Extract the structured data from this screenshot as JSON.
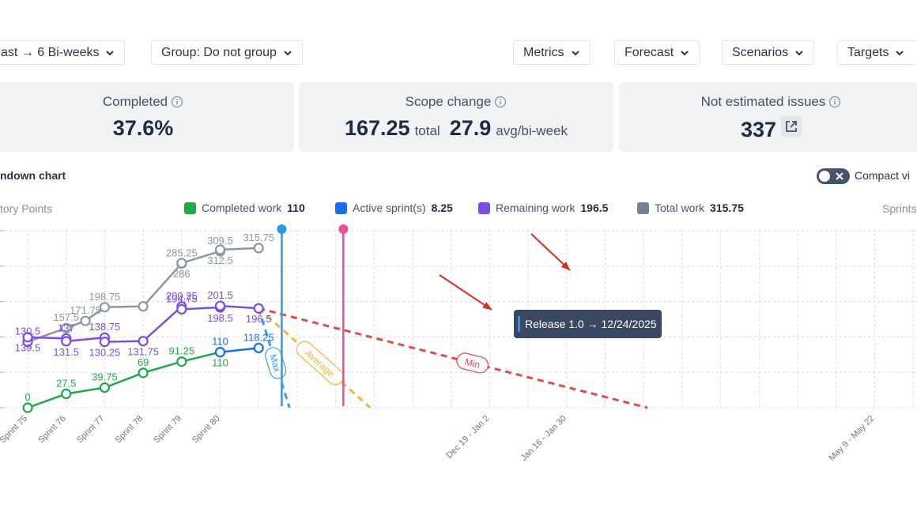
{
  "toolbar": {
    "range_label": "ast → 6 Bi-weeks",
    "group_label": "Group: Do not group",
    "metrics_label": "Metrics",
    "forecast_label": "Forecast",
    "scenarios_label": "Scenarios",
    "targets_label": "Targets"
  },
  "cards": {
    "completed": {
      "title": "Completed",
      "value": "37.6%"
    },
    "scope": {
      "title": "Scope change",
      "total_value": "167.25",
      "total_unit": "total",
      "avg_value": "27.9",
      "avg_unit": "avg/bi-week"
    },
    "not_estimated": {
      "title": "Not estimated issues",
      "value": "337"
    }
  },
  "chart_header": {
    "title": "ndown chart",
    "compact_label": "Compact vi",
    "y_label": "tory Points",
    "x_label_right": "Sprints"
  },
  "legend": [
    {
      "label": "Completed work",
      "value": "110",
      "color": "#22a84a"
    },
    {
      "label": "Active sprint(s)",
      "value": "8.25",
      "color": "#1d6df0"
    },
    {
      "label": "Remaining work",
      "value": "196.5",
      "color": "#7c4ce6"
    },
    {
      "label": "Total work",
      "value": "315.75",
      "color": "#758195"
    }
  ],
  "tooltip": {
    "text": "Release 1.0 → 12/24/2025"
  },
  "chart_data": {
    "type": "line",
    "categories": [
      "Sprint 75",
      "Sprint 76",
      "Sprint 77",
      "Sprint 78",
      "Sprint 79",
      "Sprint 80"
    ],
    "x_tick_labels": [
      "Sprint 75",
      "Sprint 76",
      "Sprint 77",
      "Sprint 78",
      "Sprint 79",
      "Sprint 80",
      "Dec 19 - Jan 2",
      "Jan 16 - Jan 30",
      "May 9 - May 22"
    ],
    "ylim": [
      0,
      350
    ],
    "grid": true,
    "legend_position": "top",
    "series": [
      {
        "name": "Total work",
        "color": "#8c96a5",
        "points": [
          [
            0,
            130.5
          ],
          [
            1,
            157.5
          ],
          [
            1.5,
            171.75
          ],
          [
            2,
            198.75
          ],
          [
            3,
            200.5
          ],
          [
            4,
            285.25
          ],
          [
            4,
            286
          ],
          [
            5,
            309.5
          ],
          [
            5,
            312.5
          ],
          [
            6,
            315.75
          ]
        ],
        "labels": [
          {
            "i": 1,
            "text": "157.5",
            "pos": "above"
          },
          {
            "i": 2,
            "text": "171.75",
            "pos": "above"
          },
          {
            "i": 3,
            "text": "198.75",
            "pos": "above"
          },
          {
            "i": 5,
            "text": "285.25",
            "pos": "above"
          },
          {
            "i": 6,
            "text": "286",
            "pos": "below"
          },
          {
            "i": 7,
            "text": "309.5",
            "pos": "above"
          },
          {
            "i": 8,
            "text": "312.5",
            "pos": "below"
          },
          {
            "i": 9,
            "text": "315.75",
            "pos": "above"
          }
        ]
      },
      {
        "name": "Remaining work",
        "color": "#7c4ce6",
        "points": [
          [
            0,
            130.5
          ],
          [
            0,
            139.5
          ],
          [
            1,
            137
          ],
          [
            1,
            131.5
          ],
          [
            2,
            138.75
          ],
          [
            2,
            130.25
          ],
          [
            3,
            131.75
          ],
          [
            4,
            200.25
          ],
          [
            4,
            194.75
          ],
          [
            5,
            198.5
          ],
          [
            5,
            201.5
          ],
          [
            6,
            196.5
          ]
        ],
        "labels": [
          {
            "i": 0,
            "text": "130.5",
            "pos": "above"
          },
          {
            "i": 1,
            "text": "139.5",
            "pos": "below"
          },
          {
            "i": 2,
            "text": "137",
            "pos": "above"
          },
          {
            "i": 3,
            "text": "131.5",
            "pos": "below"
          },
          {
            "i": 4,
            "text": "138.75",
            "pos": "above"
          },
          {
            "i": 5,
            "text": "130.25",
            "pos": "below"
          },
          {
            "i": 6,
            "text": "131.75",
            "pos": "below"
          },
          {
            "i": 7,
            "text": "200.25",
            "pos": "above"
          },
          {
            "i": 8,
            "text": "194.75",
            "pos": "above"
          },
          {
            "i": 9,
            "text": "198.5",
            "pos": "below"
          },
          {
            "i": 10,
            "text": "201.5",
            "pos": "above"
          },
          {
            "i": 11,
            "text": "196.5",
            "pos": "below"
          }
        ]
      },
      {
        "name": "Completed work",
        "color": "#22a84a",
        "points": [
          [
            0,
            0
          ],
          [
            1,
            27.5
          ],
          [
            2,
            39.75
          ],
          [
            3,
            69
          ],
          [
            4,
            91.25
          ],
          [
            5,
            110
          ]
        ],
        "labels": [
          {
            "i": 0,
            "text": "0",
            "pos": "above"
          },
          {
            "i": 1,
            "text": "27.5",
            "pos": "above"
          },
          {
            "i": 2,
            "text": "39.75",
            "pos": "above"
          },
          {
            "i": 3,
            "text": "69",
            "pos": "above"
          },
          {
            "i": 4,
            "text": "91.25",
            "pos": "above"
          },
          {
            "i": 5,
            "text": "110",
            "pos": "below"
          }
        ]
      },
      {
        "name": "Active sprint(s)",
        "color": "#1d6df0",
        "points": [
          [
            5,
            110
          ],
          [
            6,
            118.25
          ]
        ],
        "labels": [
          {
            "i": 0,
            "text": "110",
            "pos": "above"
          },
          {
            "i": 1,
            "text": "118.25",
            "pos": "above"
          }
        ]
      }
    ],
    "forecasts": [
      {
        "name": "Max",
        "color": "#3b9ef0",
        "start": [
          6,
          196.5
        ],
        "end_category": 6.8,
        "end_y": 0
      },
      {
        "name": "Average",
        "color": "#f4b53f",
        "start": [
          6,
          196.5
        ],
        "end_category": 8.9,
        "end_y": 0
      },
      {
        "name": "Min",
        "color": "#e5484d",
        "start": [
          6,
          196.5
        ],
        "end_category": 16.1,
        "end_y": 0
      }
    ],
    "markers": [
      {
        "color": "#2b9be8",
        "category": 6.6
      },
      {
        "color": "#ec4e9c",
        "category": 8.2
      }
    ]
  }
}
